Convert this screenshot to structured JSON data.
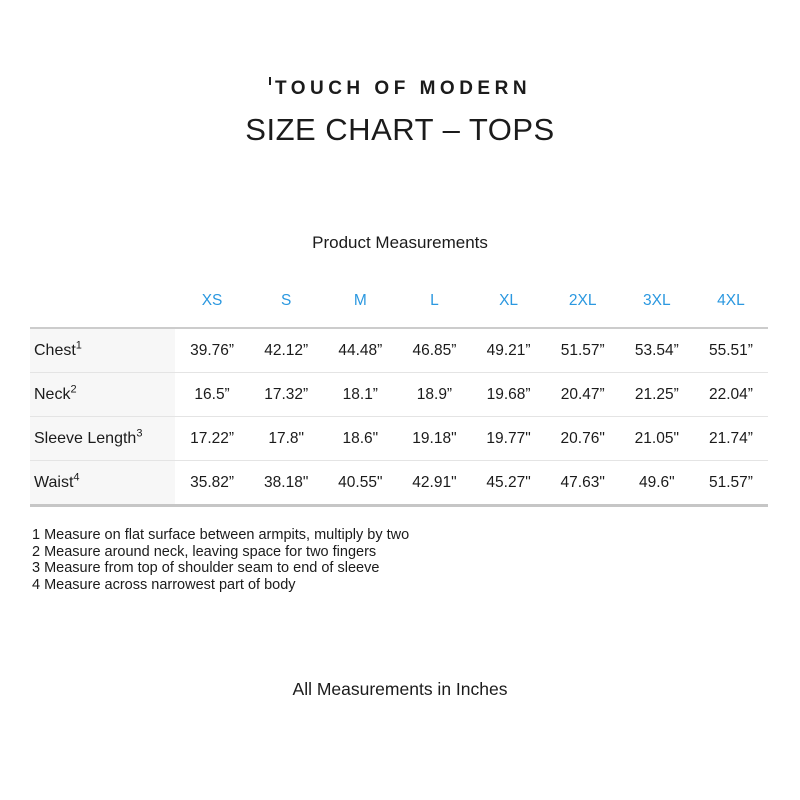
{
  "brand": {
    "name": "TOUCH OF MODERN"
  },
  "title": "SIZE CHART – TOPS",
  "table": {
    "caption": "Product Measurements",
    "size_headers": [
      "XS",
      "S",
      "M",
      "L",
      "XL",
      "2XL",
      "3XL",
      "4XL"
    ],
    "rows": [
      {
        "label": "Chest",
        "sup": "1",
        "values": [
          "39.76”",
          "42.12”",
          "44.48”",
          "46.85”",
          "49.21”",
          "51.57”",
          "53.54”",
          "55.51”"
        ]
      },
      {
        "label": "Neck",
        "sup": "2",
        "values": [
          "16.5”",
          "17.32”",
          "18.1”",
          "18.9”",
          "19.68”",
          "20.47”",
          "21.25”",
          "22.04”"
        ]
      },
      {
        "label": "Sleeve Length",
        "sup": "3",
        "values": [
          "17.22”",
          "17.8\"",
          "18.6\"",
          "19.18\"",
          "19.77\"",
          "20.76\"",
          "21.05\"",
          "21.74”"
        ]
      },
      {
        "label": "Waist",
        "sup": "4",
        "values": [
          "35.82”",
          "38.18\"",
          "40.55\"",
          "42.91\"",
          "45.27\"",
          "47.63\"",
          "49.6\"",
          "51.57”"
        ]
      }
    ]
  },
  "footnotes": [
    "1 Measure on flat surface between armpits, multiply by two",
    "2 Measure around neck, leaving space for two fingers",
    "3 Measure from top of shoulder seam to end of sleeve",
    "4 Measure across narrowest part of body"
  ],
  "footer_note": "All Measurements in Inches",
  "colors": {
    "size_header_blue": "#2b98e0",
    "label_column_bg": "#f7f7f7",
    "table_border": "#cccccc",
    "text": "#1b1b1b"
  }
}
